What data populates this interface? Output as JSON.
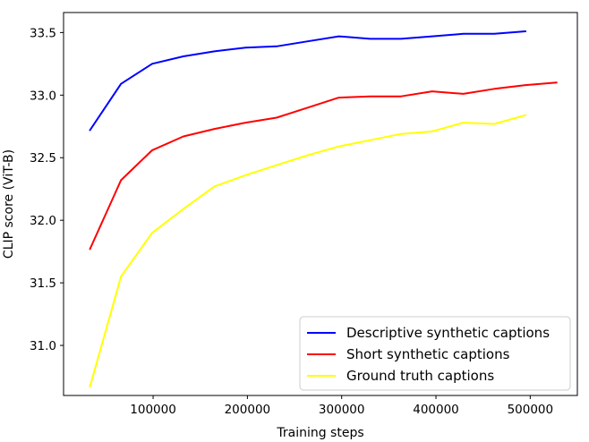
{
  "chart_data": {
    "type": "line",
    "title": "",
    "xlabel": "Training steps",
    "ylabel": "CLIP score (ViT-B)",
    "xlim": [
      5000,
      550000
    ],
    "ylim": [
      30.6,
      33.66
    ],
    "x_ticks": [
      100000,
      200000,
      300000,
      400000,
      500000
    ],
    "x_tick_labels": [
      "100000",
      "200000",
      "300000",
      "400000",
      "500000"
    ],
    "y_ticks": [
      31.0,
      31.5,
      32.0,
      32.5,
      33.0,
      33.5
    ],
    "y_tick_labels": [
      "31.0",
      "31.5",
      "32.0",
      "32.5",
      "33.0",
      "33.5"
    ],
    "grid": false,
    "legend_position": "lower-right",
    "series": [
      {
        "name": "Descriptive synthetic captions",
        "color": "#0000ff",
        "x": [
          33000,
          66000,
          99000,
          132000,
          165000,
          198000,
          231000,
          264000,
          297000,
          330000,
          363000,
          396000,
          429000,
          462000,
          495000
        ],
        "values": [
          32.72,
          33.09,
          33.25,
          33.31,
          33.35,
          33.38,
          33.39,
          33.43,
          33.47,
          33.45,
          33.45,
          33.47,
          33.49,
          33.49,
          33.51
        ]
      },
      {
        "name": "Short synthetic captions",
        "color": "#ff0000",
        "x": [
          33000,
          66000,
          99000,
          132000,
          165000,
          198000,
          231000,
          264000,
          297000,
          330000,
          363000,
          396000,
          429000,
          462000,
          495000,
          528000
        ],
        "values": [
          31.77,
          32.32,
          32.56,
          32.67,
          32.73,
          32.78,
          32.82,
          32.9,
          32.98,
          32.99,
          32.99,
          33.03,
          33.01,
          33.05,
          33.08,
          33.1
        ]
      },
      {
        "name": "Ground truth captions",
        "color": "#ffff00",
        "x": [
          33000,
          66000,
          99000,
          132000,
          165000,
          198000,
          231000,
          264000,
          297000,
          330000,
          363000,
          396000,
          429000,
          462000,
          495000
        ],
        "values": [
          30.67,
          31.55,
          31.9,
          32.09,
          32.27,
          32.36,
          32.44,
          32.52,
          32.59,
          32.64,
          32.69,
          32.71,
          32.78,
          32.77,
          32.84
        ]
      }
    ]
  }
}
